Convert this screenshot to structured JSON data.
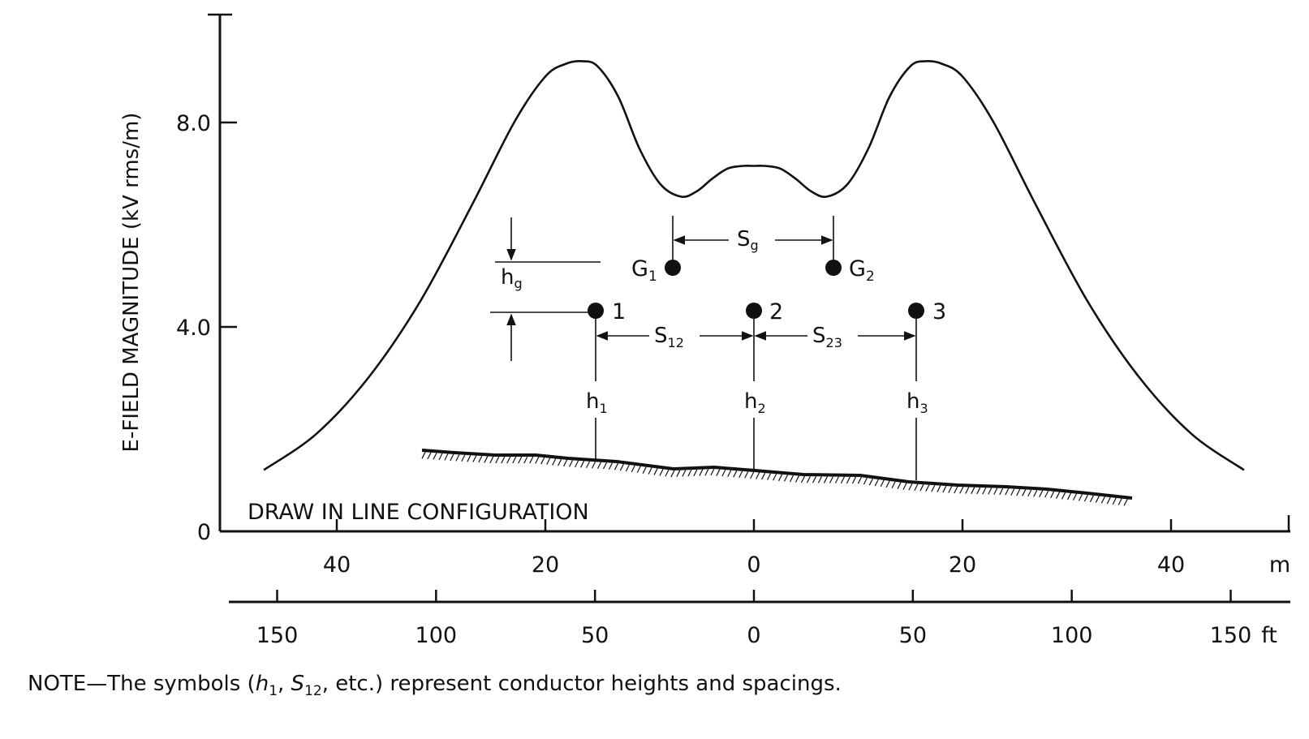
{
  "chart_data": {
    "type": "line",
    "ylabel": "E-FIELD MAGNITUDE (kV rms/m)",
    "y_ticks": [
      "0",
      "4.0",
      "8.0"
    ],
    "x_ticks_m": [
      "40",
      "20",
      "0",
      "20",
      "40"
    ],
    "x_unit_m": "m",
    "x_ticks_ft": [
      "150",
      "100",
      "50",
      "0",
      "50",
      "100",
      "150"
    ],
    "x_unit_ft": "ft",
    "ylim": [
      0,
      10
    ],
    "xlim_m": [
      -49,
      49
    ],
    "series": [
      {
        "x": [
          -47,
          -42,
          -37,
          -32,
          -27,
          -23,
          -20,
          -18,
          -16.5,
          -15,
          -13,
          -11,
          -9,
          -7,
          -5.5,
          -4,
          -2.5,
          -1,
          0,
          1,
          2.5,
          4,
          5.5,
          7,
          9,
          11,
          13,
          15,
          16.5,
          18,
          20,
          23,
          27,
          32,
          37,
          42,
          47
        ],
        "y": [
          1.2,
          1.9,
          3.0,
          4.5,
          6.4,
          8.0,
          8.9,
          9.15,
          9.2,
          9.1,
          8.5,
          7.5,
          6.8,
          6.55,
          6.65,
          6.9,
          7.1,
          7.15,
          7.15,
          7.15,
          7.1,
          6.9,
          6.65,
          6.55,
          6.8,
          7.5,
          8.5,
          9.1,
          9.2,
          9.15,
          8.9,
          8.0,
          6.4,
          4.5,
          3.0,
          1.9,
          1.2
        ]
      }
    ],
    "annotations": {
      "configuration_label": "DRAW IN LINE CONFIGURATION",
      "ground_wires": [
        {
          "label": "G",
          "sub": "1",
          "x_m": -7.5
        },
        {
          "label": "G",
          "sub": "2",
          "x_m": 7.5
        }
      ],
      "conductors": [
        {
          "label": "1",
          "x_m": -15
        },
        {
          "label": "2",
          "x_m": 0
        },
        {
          "label": "3",
          "x_m": 15
        }
      ],
      "spacings": [
        {
          "label": "S",
          "sub": "g"
        },
        {
          "label": "S",
          "sub": "12"
        },
        {
          "label": "S",
          "sub": "23"
        }
      ],
      "heights": [
        {
          "label": "h",
          "sub": "g"
        },
        {
          "label": "h",
          "sub": "1"
        },
        {
          "label": "h",
          "sub": "2"
        },
        {
          "label": "h",
          "sub": "3"
        }
      ]
    }
  },
  "note": {
    "prefix": "NOTE—The symbols (",
    "sym1": "h",
    "sym1_sub": "1",
    "sep": ", ",
    "sym2": "S",
    "sym2_sub": "12",
    "suffix": ", etc.) represent conductor heights and spacings."
  }
}
